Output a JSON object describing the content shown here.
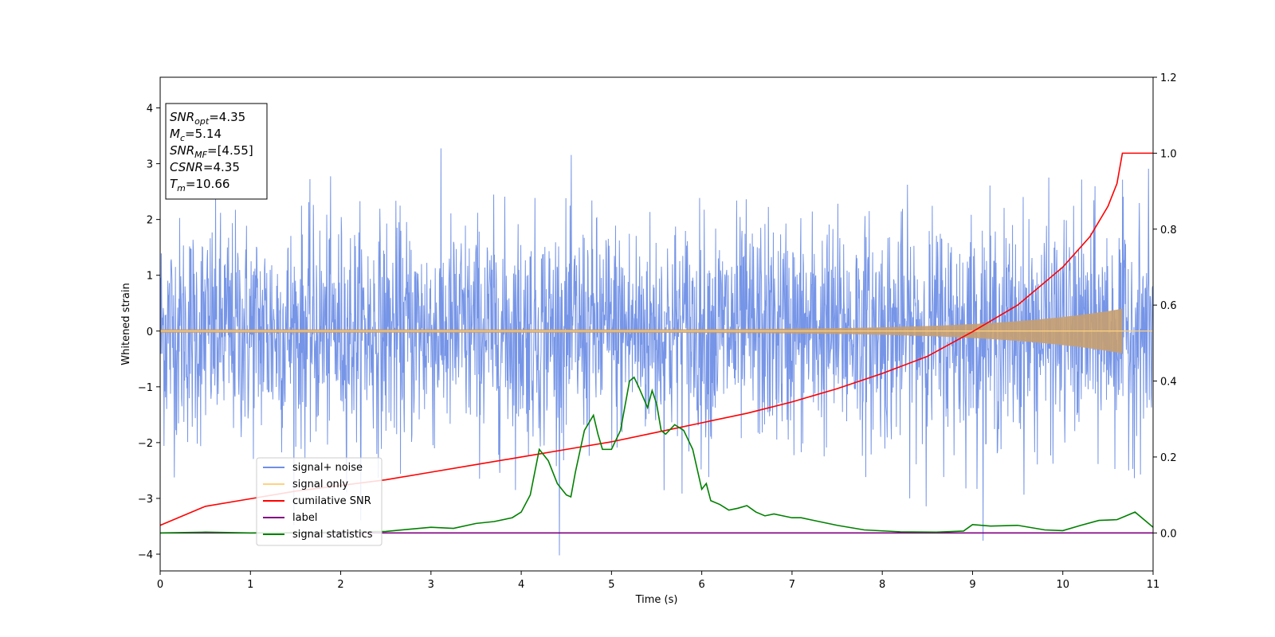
{
  "chart_data": {
    "type": "line",
    "xlabel": "Time (s)",
    "ylabel": "Whitened strain",
    "xlim": [
      0,
      11
    ],
    "ylim": [
      -4.3,
      4.55
    ],
    "y2lim": [
      -0.1,
      1.2
    ],
    "x_ticks": [
      0,
      1,
      2,
      3,
      4,
      5,
      6,
      7,
      8,
      9,
      10,
      11
    ],
    "x_tick_labels": [
      "0",
      "1",
      "2",
      "3",
      "4",
      "5",
      "6",
      "7",
      "8",
      "9",
      "10",
      "11"
    ],
    "y_ticks": [
      -4,
      -3,
      -2,
      -1,
      0,
      1,
      2,
      3,
      4
    ],
    "y_tick_labels": [
      "−4",
      "−3",
      "−2",
      "−1",
      "0",
      "1",
      "2",
      "3",
      "4"
    ],
    "y2_ticks": [
      0.0,
      0.2,
      0.4,
      0.6,
      0.8,
      1.0,
      1.2
    ],
    "y2_tick_labels": [
      "0.0",
      "0.2",
      "0.4",
      "0.6",
      "0.8",
      "1.0",
      "1.2"
    ],
    "legend_position": "lower-left",
    "legend": [
      {
        "label": "signal+ noise",
        "color": "#6f8fe6"
      },
      {
        "label": "signal only",
        "color": "#ffd27f"
      },
      {
        "label": "cumilative SNR",
        "color": "#ff0000"
      },
      {
        "label": "label",
        "color": "#800080"
      },
      {
        "label": "signal statistics",
        "color": "#008000"
      }
    ],
    "annotation": {
      "lines": [
        {
          "main": "SNR",
          "sub": "opt",
          "rest": "=4.35"
        },
        {
          "main": "M",
          "sub": "c",
          "rest": "=5.14"
        },
        {
          "main": "SNR",
          "sub": "MF",
          "rest": "=[4.55]"
        },
        {
          "main": "CSNR",
          "sub": "",
          "rest": "=4.35"
        },
        {
          "main": "T",
          "sub": "m",
          "rest": "=10.66"
        }
      ]
    },
    "series": [
      {
        "name": "signal+ noise",
        "axis": "left",
        "color": "#6f8fe6",
        "description_kind": "noise",
        "amplitude_sigma": 1.0,
        "x_range": [
          0,
          11
        ]
      },
      {
        "name": "signal only",
        "axis": "left",
        "color": "#ffd27f",
        "description_kind": "chirp",
        "merger_time": 10.66,
        "peak_amplitude": 0.4
      },
      {
        "name": "cumilative SNR",
        "axis": "right",
        "color": "#ff0000",
        "x": [
          0,
          0.5,
          1,
          1.5,
          2,
          2.5,
          3,
          3.5,
          4,
          4.5,
          5,
          5.5,
          6,
          6.5,
          7,
          7.5,
          8,
          8.5,
          9,
          9.5,
          10,
          10.3,
          10.5,
          10.6,
          10.66,
          11
        ],
        "values": [
          0.02,
          0.07,
          0.09,
          0.11,
          0.125,
          0.14,
          0.16,
          0.18,
          0.2,
          0.22,
          0.24,
          0.265,
          0.29,
          0.315,
          0.345,
          0.38,
          0.42,
          0.465,
          0.53,
          0.6,
          0.7,
          0.78,
          0.86,
          0.92,
          1.0,
          1.0
        ]
      },
      {
        "name": "label",
        "axis": "right",
        "color": "#800080",
        "x": [
          0,
          11
        ],
        "values": [
          0,
          0
        ]
      },
      {
        "name": "signal statistics",
        "axis": "right",
        "color": "#008000",
        "x": [
          0,
          0.5,
          1,
          1.5,
          2,
          2.5,
          3,
          3.25,
          3.5,
          3.7,
          3.9,
          4.0,
          4.1,
          4.2,
          4.3,
          4.4,
          4.5,
          4.55,
          4.6,
          4.7,
          4.8,
          4.85,
          4.9,
          5.0,
          5.1,
          5.2,
          5.25,
          5.3,
          5.4,
          5.45,
          5.5,
          5.55,
          5.6,
          5.7,
          5.8,
          5.9,
          6.0,
          6.05,
          6.1,
          6.2,
          6.3,
          6.4,
          6.5,
          6.6,
          6.7,
          6.8,
          6.9,
          7.0,
          7.1,
          7.2,
          7.3,
          7.5,
          7.8,
          8.2,
          8.6,
          8.9,
          9.0,
          9.2,
          9.5,
          9.8,
          10.0,
          10.2,
          10.4,
          10.6,
          10.7,
          10.8,
          10.9,
          11
        ],
        "values": [
          0.0,
          0.002,
          0.0,
          0.001,
          0.002,
          0.004,
          0.015,
          0.012,
          0.025,
          0.03,
          0.04,
          0.055,
          0.1,
          0.22,
          0.19,
          0.13,
          0.1,
          0.095,
          0.16,
          0.27,
          0.31,
          0.26,
          0.22,
          0.22,
          0.27,
          0.4,
          0.41,
          0.385,
          0.33,
          0.375,
          0.34,
          0.27,
          0.26,
          0.285,
          0.27,
          0.22,
          0.115,
          0.13,
          0.085,
          0.075,
          0.06,
          0.065,
          0.072,
          0.055,
          0.045,
          0.05,
          0.045,
          0.04,
          0.04,
          0.035,
          0.03,
          0.02,
          0.008,
          0.003,
          0.002,
          0.005,
          0.022,
          0.018,
          0.02,
          0.008,
          0.006,
          0.02,
          0.033,
          0.035,
          0.045,
          0.055,
          0.035,
          0.015
        ]
      }
    ]
  }
}
